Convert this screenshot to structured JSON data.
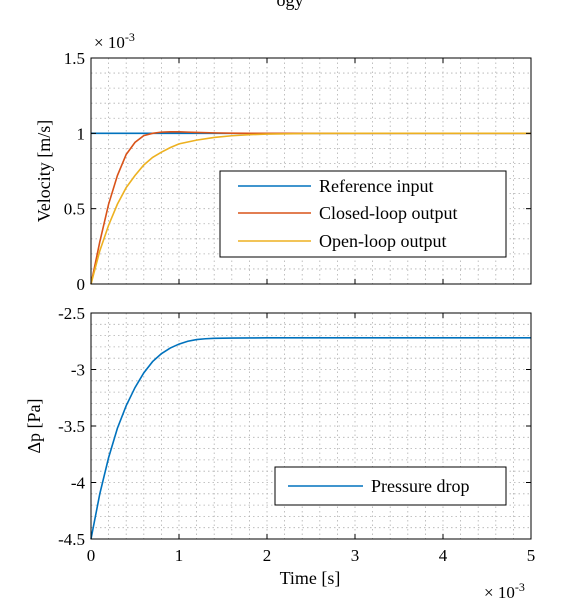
{
  "figure": {
    "title": "ogy"
  },
  "chart_data": [
    {
      "type": "line",
      "id": "velocity",
      "title": "",
      "xlabel": "",
      "ylabel": "Velocity [m/s]",
      "y_multiplier": "× 10",
      "y_multiplier_exp": "-3",
      "xlim": [
        0,
        0.005
      ],
      "ylim": [
        0,
        1.5
      ],
      "x_ticks": [
        0,
        0.001,
        0.002,
        0.003,
        0.004,
        0.005
      ],
      "y_ticks": [
        0,
        0.5,
        1,
        1.5
      ],
      "y_tick_labels": [
        "0",
        "0.5",
        "1",
        "1.5"
      ],
      "grid": true,
      "legend_position": "lower-right",
      "series": [
        {
          "name": "Reference input",
          "color": "#0072BD",
          "x": [
            0,
            0.005
          ],
          "y": [
            1,
            1
          ]
        },
        {
          "name": "Closed-loop output",
          "color": "#D95319",
          "x": [
            0,
            0.0001,
            0.0002,
            0.0003,
            0.0004,
            0.0005,
            0.0006,
            0.0007,
            0.0008,
            0.0009,
            0.001,
            0.0011,
            0.0012,
            0.0014,
            0.0016,
            0.0018,
            0.002,
            0.0025,
            0.003,
            0.0035,
            0.004,
            0.0045,
            0.005
          ],
          "y": [
            0,
            0.28,
            0.53,
            0.72,
            0.86,
            0.94,
            0.985,
            1.0,
            1.008,
            1.01,
            1.01,
            1.008,
            1.006,
            1.003,
            1.001,
            1.0,
            1.0,
            1.0,
            1.0,
            1.0,
            1.0,
            1.0,
            1.0
          ]
        },
        {
          "name": "Open-loop output",
          "color": "#EDB120",
          "x": [
            0,
            0.0001,
            0.0002,
            0.0003,
            0.0004,
            0.0005,
            0.0006,
            0.0007,
            0.0008,
            0.0009,
            0.001,
            0.0012,
            0.0014,
            0.0016,
            0.0018,
            0.002,
            0.0022,
            0.0025,
            0.003,
            0.0035,
            0.004,
            0.0045,
            0.005
          ],
          "y": [
            0,
            0.22,
            0.39,
            0.53,
            0.64,
            0.72,
            0.79,
            0.84,
            0.875,
            0.905,
            0.93,
            0.955,
            0.973,
            0.984,
            0.991,
            0.995,
            0.997,
            0.999,
            1.0,
            1.0,
            1.0,
            1.0,
            1.0
          ]
        }
      ]
    },
    {
      "type": "line",
      "id": "pressure",
      "title": "",
      "xlabel": "Time [s]",
      "ylabel": "Δp [Pa]",
      "x_multiplier": "× 10",
      "x_multiplier_exp": "-3",
      "xlim": [
        0,
        0.005
      ],
      "ylim": [
        -4.5,
        -2.5
      ],
      "x_ticks": [
        0,
        0.001,
        0.002,
        0.003,
        0.004,
        0.005
      ],
      "x_tick_labels": [
        "0",
        "1",
        "2",
        "3",
        "4",
        "5"
      ],
      "y_ticks": [
        -4.5,
        -4,
        -3.5,
        -3,
        -2.5
      ],
      "y_tick_labels": [
        "-4.5",
        "-4",
        "-3.5",
        "-3",
        "-2.5"
      ],
      "grid": true,
      "legend_position": "lower-right",
      "series": [
        {
          "name": "Pressure drop",
          "color": "#0072BD",
          "x": [
            0,
            0.0001,
            0.0002,
            0.0003,
            0.0004,
            0.0005,
            0.0006,
            0.0007,
            0.0008,
            0.0009,
            0.001,
            0.0011,
            0.0012,
            0.0013,
            0.0014,
            0.0016,
            0.0018,
            0.002,
            0.0025,
            0.003,
            0.0035,
            0.004,
            0.0045,
            0.005
          ],
          "y": [
            -4.5,
            -4.1,
            -3.78,
            -3.52,
            -3.32,
            -3.16,
            -3.03,
            -2.93,
            -2.86,
            -2.81,
            -2.775,
            -2.75,
            -2.735,
            -2.728,
            -2.724,
            -2.722,
            -2.721,
            -2.72,
            -2.72,
            -2.72,
            -2.72,
            -2.72,
            -2.72,
            -2.72
          ]
        }
      ]
    }
  ]
}
